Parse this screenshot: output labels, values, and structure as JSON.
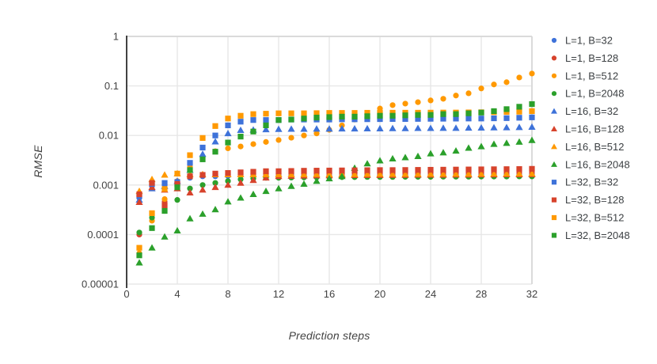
{
  "palette": {
    "blue": "#3E72D9",
    "red": "#D7432C",
    "orange": "#FF9900",
    "green": "#2BA02B",
    "grid": "#E7E7E7",
    "border": "#DADADA",
    "axis": "#424242",
    "tick_text": "#424242",
    "legend_text": "#3C4043",
    "background": "#FFFFFF"
  },
  "chart_data": {
    "type": "scatter",
    "title": "",
    "xlabel": "Prediction steps",
    "ylabel": "RMSE",
    "y_scale": "log",
    "grid": true,
    "legend_position": "right",
    "xlim": [
      0,
      32
    ],
    "ylim": [
      1e-05,
      1
    ],
    "x_ticks": [
      {
        "label": "0",
        "value": 0
      },
      {
        "label": "4",
        "value": 4
      },
      {
        "label": "8",
        "value": 8
      },
      {
        "label": "12",
        "value": 12
      },
      {
        "label": "16",
        "value": 16
      },
      {
        "label": "20",
        "value": 20
      },
      {
        "label": "24",
        "value": 24
      },
      {
        "label": "28",
        "value": 28
      },
      {
        "label": "32",
        "value": 32
      }
    ],
    "y_ticks": [
      {
        "label": "1",
        "value": 1
      },
      {
        "label": "0.1",
        "value": 0.1
      },
      {
        "label": "0.01",
        "value": 0.01
      },
      {
        "label": "0.001",
        "value": 0.001
      },
      {
        "label": "0.0001",
        "value": 0.0001
      },
      {
        "label": "0.00001",
        "value": 1e-05
      }
    ],
    "x": [
      1,
      2,
      3,
      4,
      5,
      6,
      7,
      8,
      9,
      10,
      11,
      12,
      13,
      14,
      15,
      16,
      17,
      18,
      19,
      20,
      21,
      22,
      23,
      24,
      25,
      26,
      27,
      28,
      29,
      30,
      31,
      32
    ],
    "series": [
      {
        "name": "L=1, B=32",
        "color": "blue",
        "marker": "circle",
        "values": [
          0.00055,
          0.00095,
          0.001,
          0.0011,
          0.0014,
          0.0015,
          0.0015,
          0.00152,
          0.00155,
          0.00155,
          0.00155,
          0.00156,
          0.00156,
          0.00157,
          0.00157,
          0.00158,
          0.00158,
          0.00158,
          0.00159,
          0.00159,
          0.0016,
          0.0016,
          0.0016,
          0.0016,
          0.00161,
          0.00161,
          0.00161,
          0.00162,
          0.00162,
          0.00162,
          0.00163,
          0.00163
        ]
      },
      {
        "name": "L=1, B=128",
        "color": "red",
        "marker": "circle",
        "values": [
          0.0001,
          0.00105,
          0.00046,
          0.00105,
          0.0015,
          0.0016,
          0.00165,
          0.00165,
          0.00166,
          0.00167,
          0.00168,
          0.00168,
          0.00169,
          0.00169,
          0.0017,
          0.0017,
          0.0017,
          0.00171,
          0.00171,
          0.00172,
          0.00172,
          0.00172,
          0.00173,
          0.00173,
          0.00174,
          0.00174,
          0.00174,
          0.00175,
          0.00175,
          0.00175,
          0.00176,
          0.00176
        ]
      },
      {
        "name": "L=1, B=512",
        "color": "orange",
        "marker": "circle",
        "values": [
          4.2e-05,
          0.00019,
          0.00052,
          0.0012,
          0.0023,
          0.0036,
          0.0048,
          0.0055,
          0.006,
          0.0067,
          0.0074,
          0.0081,
          0.009,
          0.01,
          0.011,
          0.013,
          0.016,
          0.021,
          0.027,
          0.035,
          0.041,
          0.044,
          0.047,
          0.051,
          0.055,
          0.064,
          0.071,
          0.089,
          0.107,
          0.119,
          0.148,
          0.178
        ]
      },
      {
        "name": "L=1, B=2048",
        "color": "green",
        "marker": "circle",
        "values": [
          0.00011,
          0.00022,
          0.0003,
          0.0005,
          0.00085,
          0.001,
          0.0011,
          0.0012,
          0.0013,
          0.00135,
          0.0014,
          0.0014,
          0.00141,
          0.00142,
          0.00143,
          0.00143,
          0.00144,
          0.00144,
          0.00145,
          0.00145,
          0.00145,
          0.00146,
          0.00146,
          0.00146,
          0.00147,
          0.00147,
          0.00147,
          0.00148,
          0.00148,
          0.00148,
          0.00149,
          0.00149
        ]
      },
      {
        "name": "L=16, B=32",
        "color": "blue",
        "marker": "triangle",
        "values": [
          0.0005,
          0.00085,
          0.00095,
          0.0012,
          0.002,
          0.0042,
          0.0075,
          0.011,
          0.0128,
          0.013,
          0.0132,
          0.0134,
          0.0135,
          0.0135,
          0.0136,
          0.0136,
          0.0137,
          0.0137,
          0.0138,
          0.0138,
          0.0139,
          0.0139,
          0.014,
          0.014,
          0.0141,
          0.0141,
          0.0142,
          0.0143,
          0.0144,
          0.0145,
          0.0146,
          0.0148
        ]
      },
      {
        "name": "L=16, B=128",
        "color": "red",
        "marker": "triangle",
        "values": [
          0.00045,
          0.0009,
          0.0008,
          0.00085,
          0.0007,
          0.0008,
          0.0009,
          0.001,
          0.0011,
          0.00125,
          0.0014,
          0.0015,
          0.00152,
          0.00154,
          0.00155,
          0.00156,
          0.00157,
          0.00157,
          0.00158,
          0.00158,
          0.00159,
          0.00159,
          0.0016,
          0.0016,
          0.0016,
          0.00161,
          0.00161,
          0.00162,
          0.00162,
          0.00163,
          0.00163,
          0.00164
        ]
      },
      {
        "name": "L=16, B=512",
        "color": "orange",
        "marker": "triangle",
        "values": [
          0.00075,
          0.0013,
          0.0016,
          0.0017,
          0.00165,
          0.00164,
          0.00163,
          0.00163,
          0.00163,
          0.00163,
          0.00164,
          0.00164,
          0.00164,
          0.00164,
          0.00165,
          0.00165,
          0.00165,
          0.00165,
          0.00166,
          0.00166,
          0.00166,
          0.00166,
          0.00167,
          0.00167,
          0.00167,
          0.00168,
          0.00168,
          0.00168,
          0.00169,
          0.00169,
          0.0017,
          0.0017
        ]
      },
      {
        "name": "L=16, B=2048",
        "color": "green",
        "marker": "triangle",
        "values": [
          2.7e-05,
          5.4e-05,
          9e-05,
          0.00012,
          0.00021,
          0.00026,
          0.00032,
          0.00046,
          0.00055,
          0.00065,
          0.00075,
          0.00085,
          0.00095,
          0.00105,
          0.0012,
          0.00135,
          0.0015,
          0.0022,
          0.0027,
          0.0031,
          0.0034,
          0.0036,
          0.0038,
          0.0043,
          0.0045,
          0.0049,
          0.0056,
          0.006,
          0.0067,
          0.007,
          0.0074,
          0.008
        ]
      },
      {
        "name": "L=32, B=32",
        "color": "blue",
        "marker": "square",
        "values": [
          0.0006,
          0.00105,
          0.0011,
          0.00115,
          0.0028,
          0.0057,
          0.01,
          0.016,
          0.019,
          0.0205,
          0.0205,
          0.0205,
          0.021,
          0.021,
          0.021,
          0.021,
          0.0212,
          0.0212,
          0.0213,
          0.0214,
          0.0215,
          0.0215,
          0.0216,
          0.0217,
          0.0218,
          0.0219,
          0.022,
          0.022,
          0.0222,
          0.0224,
          0.0228,
          0.0232
        ]
      },
      {
        "name": "L=32, B=128",
        "color": "red",
        "marker": "square",
        "values": [
          0.00065,
          0.0011,
          0.00039,
          0.00105,
          0.0015,
          0.0016,
          0.0017,
          0.00175,
          0.0018,
          0.00185,
          0.0019,
          0.0019,
          0.00192,
          0.00194,
          0.00195,
          0.00196,
          0.00197,
          0.00198,
          0.00199,
          0.002,
          0.002,
          0.00201,
          0.00202,
          0.00203,
          0.00204,
          0.00205,
          0.00206,
          0.00207,
          0.00208,
          0.00209,
          0.0021,
          0.00212
        ]
      },
      {
        "name": "L=32, B=512",
        "color": "orange",
        "marker": "square",
        "values": [
          5.4e-05,
          0.00027,
          0.00083,
          0.0017,
          0.004,
          0.0089,
          0.0155,
          0.022,
          0.025,
          0.027,
          0.0275,
          0.028,
          0.028,
          0.028,
          0.0282,
          0.0285,
          0.0285,
          0.0285,
          0.0287,
          0.0287,
          0.0288,
          0.0288,
          0.0288,
          0.0289,
          0.029,
          0.029,
          0.0292,
          0.0294,
          0.0296,
          0.0299,
          0.0302,
          0.031
        ]
      },
      {
        "name": "L=32, B=2048",
        "color": "green",
        "marker": "square",
        "values": [
          3.8e-05,
          0.000135,
          0.0003,
          0.0009,
          0.002,
          0.0033,
          0.0047,
          0.0072,
          0.0095,
          0.012,
          0.016,
          0.0205,
          0.021,
          0.022,
          0.023,
          0.0235,
          0.024,
          0.024,
          0.0245,
          0.025,
          0.025,
          0.0255,
          0.026,
          0.026,
          0.027,
          0.027,
          0.028,
          0.029,
          0.031,
          0.034,
          0.038,
          0.043
        ]
      }
    ]
  }
}
